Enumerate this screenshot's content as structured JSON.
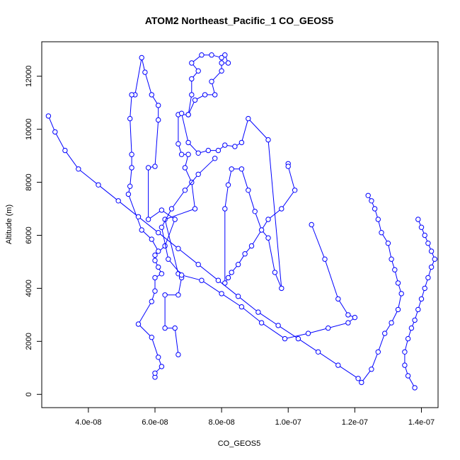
{
  "chart_data": {
    "type": "line",
    "title": "ATOM2 Northeast_Pacific_1 CO_GEOS5",
    "xlabel": "CO_GEOS5",
    "ylabel": "Altitude (m)",
    "xlim": [
      2.6e-08,
      1.45e-07
    ],
    "ylim": [
      -500,
      13300
    ],
    "x_ticks": [
      4e-08,
      6e-08,
      8e-08,
      1e-07,
      1.2e-07,
      1.4e-07
    ],
    "x_tick_labels": [
      "4.0e-08",
      "6.0e-08",
      "8.0e-08",
      "1.0e-07",
      "1.2e-07",
      "1.4e-07"
    ],
    "y_ticks": [
      0,
      2000,
      4000,
      6000,
      8000,
      10000,
      12000
    ],
    "y_tick_labels": [
      "0",
      "2000",
      "4000",
      "6000",
      "8000",
      "10000",
      "12000"
    ],
    "grid": false,
    "marker": "open-circle",
    "color": "#0000ff",
    "series": [
      {
        "x": [
          6e-08,
          6e-08,
          6.2e-08,
          6.1e-08,
          5.9e-08,
          5.5e-08,
          5.9e-08,
          6e-08,
          6e-08,
          6.2e-08,
          6.1e-08,
          6e-08,
          6e-08,
          6.3e-08,
          6.6e-08,
          6.2e-08,
          5.8e-08,
          5.8e-08,
          6e-08,
          6.1e-08,
          6.1e-08,
          5.9e-08,
          5.7e-08,
          5.6e-08,
          5.4e-08,
          5.3e-08,
          5.25e-08,
          5.3e-08,
          5.3e-08,
          5.25e-08,
          5.2e-08,
          5.6e-08,
          5.9e-08,
          6.1e-08
        ],
        "y": [
          650,
          800,
          1050,
          1400,
          2150,
          2650,
          3500,
          3900,
          4400,
          4550,
          4800,
          5050,
          5250,
          5600,
          6600,
          6950,
          6600,
          8550,
          8600,
          10350,
          10900,
          11300,
          12150,
          12700,
          11300,
          11300,
          10400,
          9050,
          8550,
          7850,
          7550,
          6200,
          5850,
          5400
        ]
      },
      {
        "x": [
          6.7e-08,
          6.6e-08,
          6.3e-08,
          6.3e-08,
          6.7e-08,
          6.8e-08,
          6.7e-08,
          6.3e-08,
          7.2e-08,
          7.1e-08,
          6.9e-08,
          7e-08,
          6.8e-08,
          6.7e-08,
          6.7e-08,
          7e-08,
          7.2e-08,
          7.5e-08,
          7.8e-08,
          7.7e-08,
          8e-08,
          8e-08,
          8.2e-08,
          8.1e-08,
          8e-08,
          7.7e-08,
          7.4e-08,
          7.1e-08,
          7.3e-08,
          7.1e-08,
          7.1e-08,
          7e-08
        ],
        "y": [
          1500,
          2500,
          2500,
          3750,
          3750,
          4400,
          4550,
          6600,
          7000,
          8000,
          8550,
          9050,
          9050,
          9450,
          10550,
          10550,
          11100,
          11300,
          11300,
          11800,
          12200,
          12500,
          12500,
          12800,
          12700,
          12800,
          12800,
          12500,
          12200,
          11900,
          11300,
          10550
        ]
      },
      {
        "x": [
          1e-07,
          1e-07,
          1.02e-07,
          9.8e-08,
          9.4e-08,
          8.9e-08,
          8.7e-08,
          8.5e-08,
          8.3e-08,
          8.2e-08,
          8.1e-08,
          8.1e-08,
          8.2e-08,
          8.3e-08,
          8.6e-08,
          8.8e-08,
          9e-08,
          9.2e-08,
          9.4e-08,
          9.6e-08,
          9.8e-08,
          9.4e-08,
          8.8e-08,
          8.6e-08,
          8.4e-08,
          8.1e-08,
          7.9e-08,
          7.6e-08,
          7.3e-08,
          7e-08,
          6.8e-08
        ],
        "y": [
          8700,
          8600,
          7700,
          7000,
          6600,
          5600,
          5300,
          4900,
          4600,
          4400,
          4200,
          7000,
          7900,
          8500,
          8500,
          7700,
          6900,
          6200,
          5900,
          4600,
          4000,
          9600,
          10400,
          9500,
          9350,
          9400,
          9200,
          9200,
          9100,
          9500,
          10600
        ]
      },
      {
        "x": [
          1.07e-07,
          1.11e-07,
          1.15e-07,
          1.18e-07,
          1.2e-07,
          1.18e-07,
          1.12e-07,
          1.06e-07,
          9.9e-08,
          9.2e-08,
          8.6e-08,
          8e-08,
          7.4e-08,
          6.8e-08,
          6.4e-08,
          6.2e-08,
          6.5e-08,
          6.9e-08,
          7.3e-08,
          7.8e-08
        ],
        "y": [
          6400,
          5100,
          3600,
          3000,
          2900,
          2700,
          2500,
          2300,
          2100,
          2700,
          3300,
          3800,
          4300,
          4500,
          5100,
          6300,
          7000,
          7700,
          8300,
          8900
        ]
      },
      {
        "x": [
          1.22e-07,
          1.25e-07,
          1.27e-07,
          1.29e-07,
          1.31e-07,
          1.33e-07,
          1.34e-07,
          1.33e-07,
          1.32e-07,
          1.31e-07,
          1.3e-07,
          1.28e-07,
          1.27e-07,
          1.26e-07,
          1.25e-07,
          1.24e-07
        ],
        "y": [
          450,
          950,
          1600,
          2300,
          2700,
          3200,
          3800,
          4200,
          4700,
          5100,
          5700,
          6100,
          6600,
          7000,
          7300,
          7500
        ]
      },
      {
        "x": [
          1.38e-07,
          1.36e-07,
          1.35e-07,
          1.35e-07,
          1.36e-07,
          1.37e-07,
          1.38e-07,
          1.39e-07,
          1.4e-07,
          1.41e-07,
          1.42e-07,
          1.43e-07,
          1.44e-07,
          1.43e-07,
          1.42e-07,
          1.41e-07,
          1.4e-07,
          1.39e-07
        ],
        "y": [
          250,
          700,
          1100,
          1600,
          2100,
          2500,
          2800,
          3200,
          3600,
          4000,
          4400,
          4800,
          5100,
          5400,
          5700,
          6000,
          6300,
          6600
        ]
      },
      {
        "x": [
          1.21e-07,
          1.15e-07,
          1.09e-07,
          1.03e-07,
          9.7e-08,
          9.1e-08,
          8.5e-08,
          7.9e-08,
          7.3e-08,
          6.7e-08,
          6.1e-08,
          5.5e-08,
          4.9e-08,
          4.3e-08,
          3.7e-08,
          3.3e-08,
          3e-08,
          2.8e-08
        ],
        "y": [
          600,
          1100,
          1600,
          2100,
          2600,
          3100,
          3700,
          4300,
          4900,
          5500,
          6100,
          6700,
          7300,
          7900,
          8500,
          9200,
          9900,
          10500
        ]
      }
    ]
  }
}
